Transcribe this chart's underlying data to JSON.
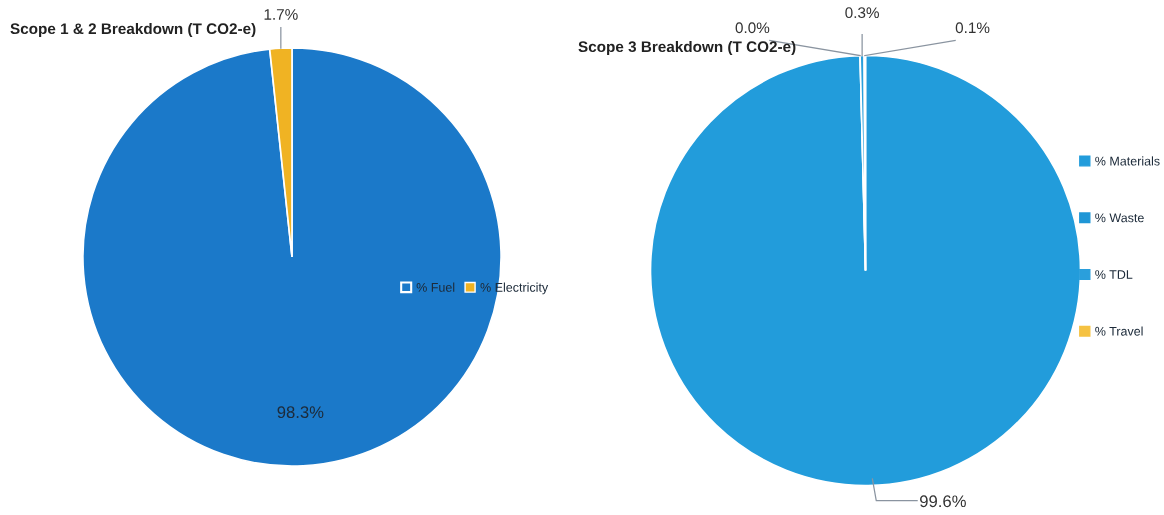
{
  "chart_data": [
    {
      "type": "pie",
      "title": "Scope 1 & 2 Breakdown (T CO2-e)",
      "categories": [
        "% Fuel",
        "% Electricity"
      ],
      "values": [
        98.3,
        1.7
      ],
      "colors": [
        "#1b79c9",
        "#f0b323"
      ],
      "value_labels": [
        "98.3%",
        "1.7%"
      ],
      "legend": "right"
    },
    {
      "type": "pie",
      "title": "Scope 3 Breakdown (T CO2-e)",
      "categories": [
        "% Materials",
        "% Waste",
        "% TDL",
        "% Travel"
      ],
      "values": [
        99.6,
        0.0,
        0.3,
        0.1
      ],
      "colors": [
        "#229cdb",
        "#1f96d6",
        "#2a9fdc",
        "#f5c242"
      ],
      "value_labels": [
        "99.6%",
        "0.0%",
        "0.3%",
        "0.1%"
      ],
      "legend": "right"
    }
  ]
}
